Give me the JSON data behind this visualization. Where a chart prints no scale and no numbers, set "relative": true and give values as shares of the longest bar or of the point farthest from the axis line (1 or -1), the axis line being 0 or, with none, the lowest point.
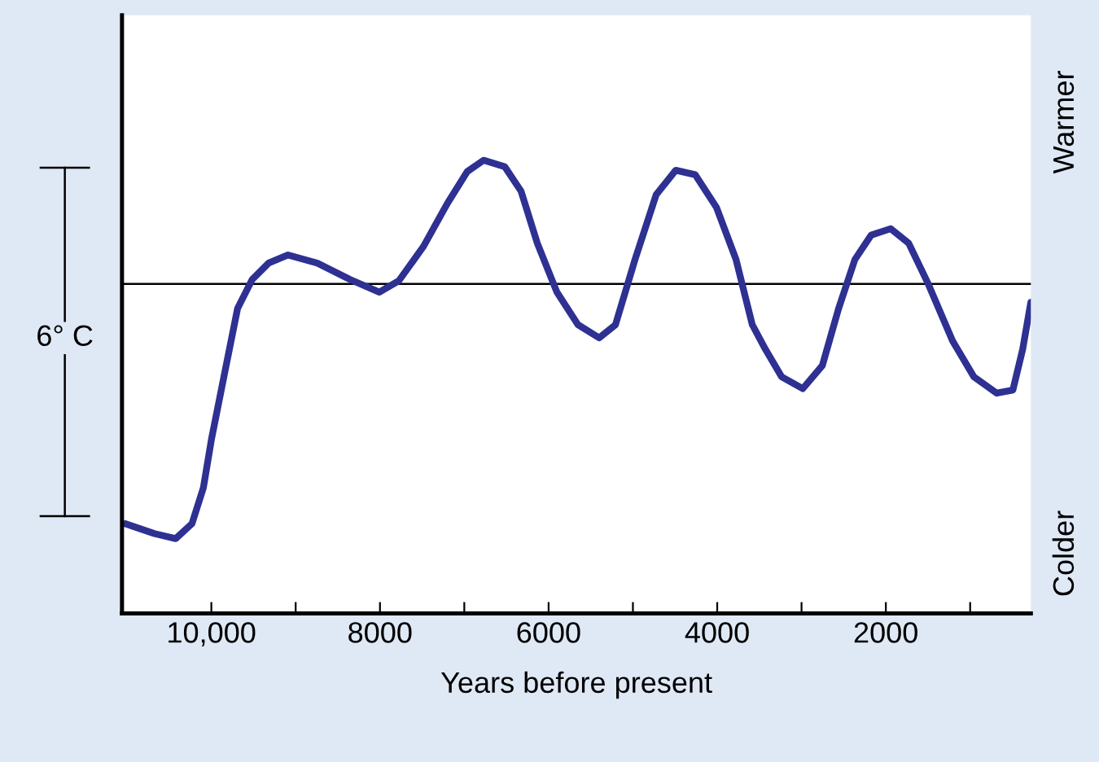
{
  "chart_data": {
    "type": "line",
    "relative": true,
    "xlabel": "Years before present",
    "x": [
      11022,
      10674,
      10423,
      10230,
      10095,
      9998,
      9844,
      9689,
      9515,
      9322,
      9090,
      8742,
      8356,
      8008,
      7776,
      7487,
      7197,
      6965,
      6772,
      6521,
      6327,
      6134,
      5902,
      5651,
      5400,
      5207,
      4975,
      4724,
      4492,
      4260,
      4009,
      3777,
      3584,
      3429,
      3236,
      2985,
      2753,
      2560,
      2367,
      2173,
      1942,
      1729,
      1497,
      1208,
      956,
      686,
      493,
      377,
      280
    ],
    "series": [
      {
        "color": "#2e3192",
        "values": [
          0.198,
          0.176,
          0.165,
          0.198,
          0.277,
          0.385,
          0.529,
          0.673,
          0.737,
          0.773,
          0.791,
          0.773,
          0.737,
          0.709,
          0.734,
          0.809,
          0.906,
          0.975,
          1.0,
          0.986,
          0.932,
          0.817,
          0.709,
          0.637,
          0.608,
          0.637,
          0.781,
          0.924,
          0.978,
          0.968,
          0.896,
          0.781,
          0.637,
          0.583,
          0.522,
          0.496,
          0.547,
          0.673,
          0.781,
          0.835,
          0.849,
          0.817,
          0.727,
          0.601,
          0.522,
          0.486,
          0.493,
          0.583,
          0.687
        ]
      }
    ],
    "xlim": [
      11060,
      280
    ],
    "xticks": [
      {
        "value": 10000,
        "label": "10,000"
      },
      {
        "value": 9000,
        "label": null
      },
      8000,
      {
        "value": 7000,
        "label": null
      },
      6000,
      {
        "value": 5000,
        "label": null
      },
      4000,
      {
        "value": 3000,
        "label": null
      },
      2000,
      {
        "value": 1000,
        "label": null
      }
    ],
    "tick_labels": "x",
    "grid": false,
    "legend": false,
    "marker": "none",
    "line_style": "solid",
    "ref_lines": [
      {
        "axis": "y",
        "value": 0.727,
        "color": "#000000"
      }
    ],
    "annotations": [
      "6° C",
      "Warmer",
      "Colder"
    ]
  }
}
